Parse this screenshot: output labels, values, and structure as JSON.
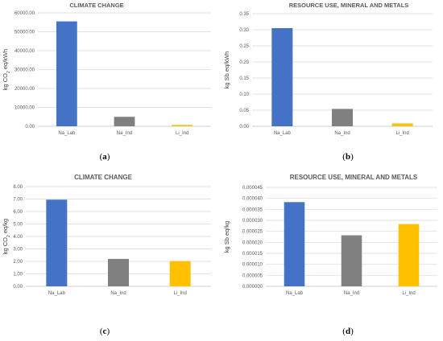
{
  "chart_data": [
    {
      "id": "a",
      "type": "bar",
      "title": "CLIMATE CHANGE",
      "ylabel_main": "kg CO",
      "ylabel_sub": "2",
      "ylabel_tail": " eq/kWh",
      "categories": [
        "Na_Lab",
        "Na_Ind",
        "Li_Ind"
      ],
      "values": [
        55500,
        5000,
        700
      ],
      "colors": [
        "#4472C4",
        "#808080",
        "#FFC000"
      ],
      "ylim": [
        0,
        60000
      ],
      "yticks": [
        "0.00",
        "10000.00",
        "20000.00",
        "30000.00",
        "40000.00",
        "50000.00",
        "60000.00"
      ],
      "grid": true,
      "caption": "a"
    },
    {
      "id": "b",
      "type": "bar",
      "title": "RESOURCE USE, MINERAL AND METALS",
      "ylabel_main": "kg Sb eq/kWh",
      "ylabel_sub": "",
      "ylabel_tail": "",
      "categories": [
        "Na_Lab",
        "Na_Ind",
        "Li_Ind"
      ],
      "values": [
        0.305,
        0.054,
        0.009
      ],
      "colors": [
        "#4472C4",
        "#808080",
        "#FFC000"
      ],
      "ylim": [
        0,
        0.35
      ],
      "yticks": [
        "0.00",
        "0.05",
        "0.10",
        "0.15",
        "0.20",
        "0.25",
        "0.30",
        "0.35"
      ],
      "grid": true,
      "caption": "b"
    },
    {
      "id": "c",
      "type": "bar",
      "title": "CLIMATE CHANGE",
      "ylabel_main": "kg CO",
      "ylabel_sub": "2",
      "ylabel_tail": " eq/kg",
      "categories": [
        "Na_Lab",
        "Na_Ind",
        "Li_Ind"
      ],
      "values": [
        6.95,
        2.2,
        2.02
      ],
      "colors": [
        "#4472C4",
        "#808080",
        "#FFC000"
      ],
      "ylim": [
        0,
        8
      ],
      "yticks": [
        "0.00",
        "1.00",
        "2.00",
        "3.00",
        "4.00",
        "5.00",
        "6.00",
        "7.00",
        "8.00"
      ],
      "grid": true,
      "caption": "c"
    },
    {
      "id": "d",
      "type": "bar",
      "title": "RESOURCE USE, MINERAL AND METALS",
      "ylabel_main": "kg Sb eq/kg",
      "ylabel_sub": "",
      "ylabel_tail": "",
      "categories": [
        "Na_Lab",
        "Na_Ind",
        "Li_Ind"
      ],
      "values": [
        3.83e-05,
        2.32e-05,
        2.83e-05
      ],
      "colors": [
        "#4472C4",
        "#808080",
        "#FFC000"
      ],
      "ylim": [
        0,
        4.5e-05
      ],
      "yticks": [
        "0.000000",
        "0.000005",
        "0.000010",
        "0.000015",
        "0.000020",
        "0.000025",
        "0.000030",
        "0.000035",
        "0.000040",
        "0.000045"
      ],
      "grid": true,
      "caption": "d"
    }
  ]
}
